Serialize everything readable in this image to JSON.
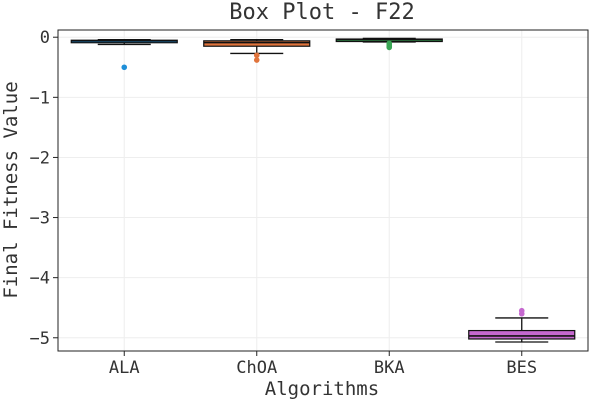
{
  "chart_data": {
    "type": "box",
    "title": "Box Plot - F22",
    "xlabel": "Algorithms",
    "ylabel": "Final Fitness Value",
    "ylim": [
      -5.22,
      0.12
    ],
    "yticks": [
      0,
      -1,
      -2,
      -3,
      -4,
      -5
    ],
    "ytick_labels": [
      "0",
      "−1",
      "−2",
      "−3",
      "−4",
      "−5"
    ],
    "grid": true,
    "categories": [
      "ALA",
      "ChOA",
      "BKA",
      "BES"
    ],
    "boxes": [
      {
        "name": "ALA",
        "color": "#1f8fd8",
        "whisker_low": -0.12,
        "q1": -0.07,
        "median": -0.06,
        "q3": -0.05,
        "whisker_high": -0.04,
        "outliers": [
          -0.5
        ]
      },
      {
        "name": "ChOA",
        "color": "#e0743c",
        "whisker_low": -0.27,
        "q1": -0.15,
        "median": -0.09,
        "q3": -0.06,
        "whisker_high": -0.04,
        "outliers": [
          -0.3,
          -0.38
        ]
      },
      {
        "name": "BKA",
        "color": "#3aa655",
        "whisker_low": -0.08,
        "q1": -0.06,
        "median": -0.04,
        "q3": -0.03,
        "whisker_high": -0.02,
        "outliers": [
          -0.1,
          -0.13,
          -0.15,
          -0.17
        ]
      },
      {
        "name": "BES",
        "color": "#c568cf",
        "whisker_low": -5.07,
        "q1": -5.02,
        "median": -4.97,
        "q3": -4.88,
        "whisker_high": -4.67,
        "outliers": [
          -4.55,
          -4.6
        ]
      }
    ]
  }
}
